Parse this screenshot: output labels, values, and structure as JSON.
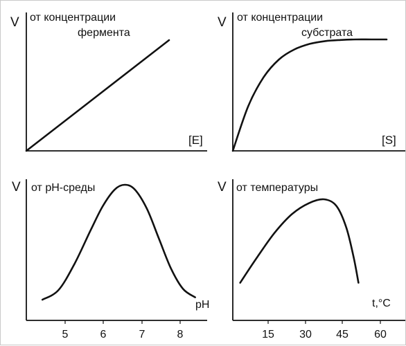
{
  "colors": {
    "ink": "#111111",
    "background": "#ffffff",
    "frame": "#c9c9c9"
  },
  "chart_data": [
    {
      "type": "line",
      "ylabel": "V",
      "title_lines": [
        "от концентрации",
        "фермента"
      ],
      "xlabel": "[E]",
      "x": [
        0,
        1
      ],
      "series": [
        {
          "values": [
            0,
            1
          ]
        }
      ],
      "grid": false
    },
    {
      "type": "line",
      "ylabel": "V",
      "title_lines": [
        "от концентрации",
        "субстрата"
      ],
      "xlabel": "[S]",
      "x": [
        0,
        0.1,
        0.2,
        0.3,
        0.4,
        0.5,
        0.6,
        0.7,
        0.8,
        0.9,
        1.0
      ],
      "series": [
        {
          "values": [
            0,
            0.4,
            0.66,
            0.82,
            0.91,
            0.96,
            0.985,
            0.995,
            1.0,
            1.0,
            1.0
          ]
        }
      ],
      "grid": false
    },
    {
      "type": "line",
      "ylabel": "V",
      "title": "от pH-среды",
      "xlabel": "pH",
      "xticks": [
        "5",
        "6",
        "7",
        "8"
      ],
      "xlim": [
        4,
        8.5
      ],
      "x": [
        4.4,
        4.8,
        5.2,
        5.6,
        5.9,
        6.2,
        6.45,
        6.7,
        7.0,
        7.3,
        7.6,
        7.9,
        8.2
      ],
      "series": [
        {
          "values": [
            0.04,
            0.12,
            0.34,
            0.62,
            0.82,
            0.96,
            1.0,
            0.96,
            0.8,
            0.55,
            0.3,
            0.13,
            0.06
          ]
        }
      ],
      "grid": false
    },
    {
      "type": "line",
      "ylabel": "V",
      "title": "от температуры",
      "xlabel": "t,°C",
      "xticks": [
        "15",
        "30",
        "45",
        "60"
      ],
      "xlim": [
        0,
        70
      ],
      "x": [
        3,
        10,
        17,
        24,
        31,
        37,
        42,
        46,
        49,
        51
      ],
      "series": [
        {
          "values": [
            0.1,
            0.38,
            0.64,
            0.84,
            0.96,
            1.0,
            0.93,
            0.7,
            0.38,
            0.1
          ]
        }
      ],
      "grid": false
    }
  ]
}
